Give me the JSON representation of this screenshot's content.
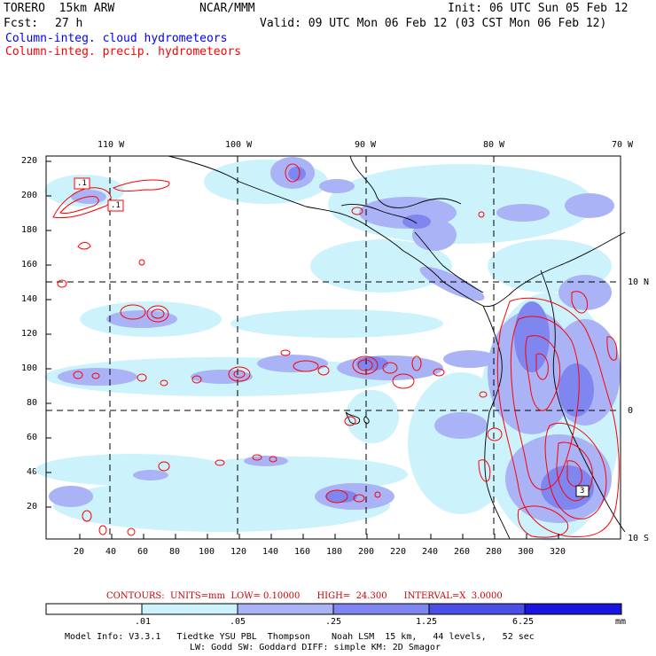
{
  "header": {
    "model": "TORERO  15km ARW",
    "institution": "NCAR/MMM",
    "init": "Init: 06 UTC Sun 05 Feb 12",
    "fcst_label": "Fcst:",
    "fcst_hours": "27 h",
    "valid": "Valid: 09 UTC Mon 06 Feb 12 (03 CST Mon 06 Feb 12)",
    "line_cloud": "Column-integ. cloud hydrometeors",
    "line_precip": "Column-integ. precip. hydrometeors",
    "color_cloud": "#0000ff",
    "color_precip": "#ff0000"
  },
  "map": {
    "top_lon_labels": [
      "110 W",
      "100 W",
      "90 W",
      "80 W",
      "70 W"
    ],
    "right_lat_labels": [
      "10 N",
      "0",
      "10 S"
    ],
    "y_ticks": [
      "220",
      "200",
      "180",
      "160",
      "140",
      "120",
      "100",
      "80",
      "60",
      "40",
      "20"
    ],
    "x_ticks": [
      "20",
      "40",
      "60",
      "80",
      "100",
      "120",
      "140",
      "160",
      "180",
      "200",
      "220",
      "240",
      "260",
      "280",
      "300",
      "320"
    ],
    "contour_labels": [
      ".1",
      ".1",
      "3"
    ]
  },
  "contours_info": "CONTOURS:  UNITS=mm  LOW= 0.10000      HIGH=  24.300      INTERVAL=X  3.0000",
  "colorbar": {
    "labels": [
      ".01",
      ".05",
      ".25",
      "1.25",
      "6.25"
    ],
    "unit": "mm",
    "colors": [
      "#ffffff",
      "#ccf2fb",
      "#a9b3f5",
      "#7f86f0",
      "#4b4fe6",
      "#1a14e0"
    ]
  },
  "footer": {
    "line1": "Model Info: V3.3.1   Tiedtke YSU PBL  Thompson    Noah LSM  15 km,   44 levels,   52 sec",
    "line2": "LW: Godd SW: Goddard DIFF: simple KM: 2D Smagor"
  }
}
